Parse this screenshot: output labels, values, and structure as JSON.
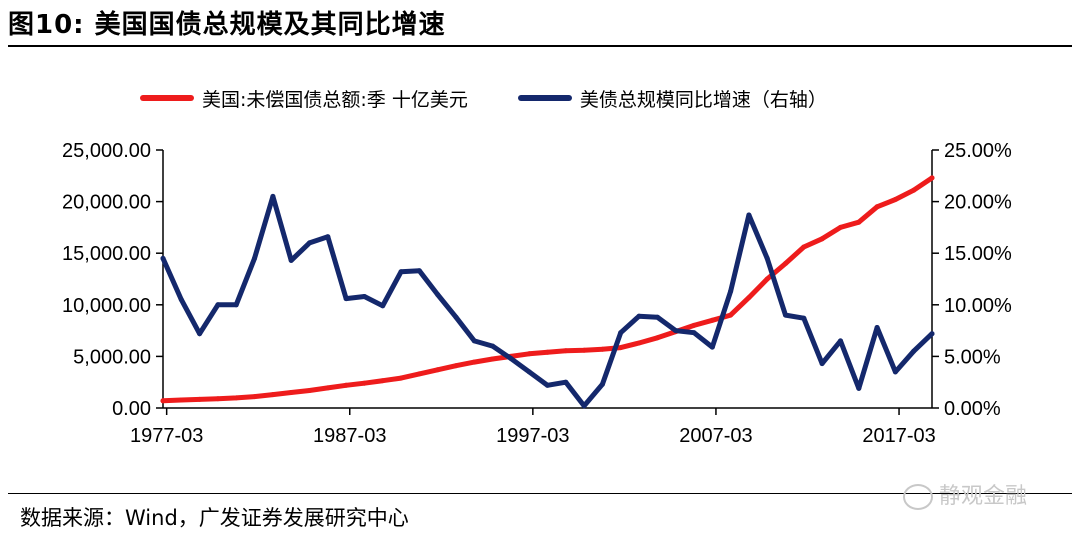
{
  "figure": {
    "title": "图10:  美国国债总规模及其同比增速",
    "source": "数据来源：Wind，广发证券发展研究中心",
    "watermark": "静观金融"
  },
  "colors": {
    "red": "#ee1c1c",
    "blue": "#14286c"
  },
  "chart_data": {
    "type": "line",
    "title": "",
    "xlabel": "",
    "ylabel": "",
    "grid": false,
    "legend_position": "top",
    "x_ticks": [
      "1977-03",
      "1987-03",
      "1997-03",
      "2007-03",
      "2017-03"
    ],
    "x_range": [
      1977.0,
      2019.0
    ],
    "y_left": {
      "range": [
        0,
        25000
      ],
      "ticks": [
        "0.00",
        "5,000.00",
        "10,000.00",
        "15,000.00",
        "20,000.00",
        "25,000.00"
      ]
    },
    "y_right": {
      "range": [
        0,
        25
      ],
      "ticks": [
        "0.00%",
        "5.00%",
        "10.00%",
        "15.00%",
        "20.00%",
        "25.00%"
      ]
    },
    "series": [
      {
        "name": "美国:未偿国债总额:季 十亿美元",
        "axis": "left",
        "color": "#ee1c1c",
        "x": [
          1977,
          1978,
          1979,
          1980,
          1981,
          1982,
          1983,
          1984,
          1985,
          1986,
          1987,
          1988,
          1989,
          1990,
          1991,
          1992,
          1993,
          1994,
          1995,
          1996,
          1997,
          1998,
          1999,
          2000,
          2001,
          2002,
          2003,
          2004,
          2005,
          2006,
          2007,
          2008,
          2009,
          2010,
          2011,
          2012,
          2013,
          2014,
          2015,
          2016,
          2017,
          2018,
          2019
        ],
        "values": [
          700,
          780,
          830,
          900,
          980,
          1100,
          1300,
          1500,
          1700,
          1950,
          2200,
          2400,
          2650,
          2900,
          3300,
          3700,
          4100,
          4450,
          4750,
          5000,
          5250,
          5400,
          5550,
          5600,
          5700,
          5850,
          6300,
          6800,
          7400,
          8000,
          8500,
          9000,
          10700,
          12500,
          14000,
          15600,
          16400,
          17500,
          18000,
          19500,
          20200,
          21100,
          22300
        ]
      },
      {
        "name": "美债总规模同比增速（右轴）",
        "axis": "right",
        "color": "#14286c",
        "x": [
          1977,
          1978,
          1979,
          1980,
          1981,
          1982,
          1983,
          1984,
          1985,
          1986,
          1987,
          1988,
          1989,
          1990,
          1991,
          1992,
          1993,
          1994,
          1995,
          1996,
          1997,
          1998,
          1999,
          2000,
          2001,
          2002,
          2003,
          2004,
          2005,
          2006,
          2007,
          2008,
          2009,
          2010,
          2011,
          2012,
          2013,
          2014,
          2015,
          2016,
          2017,
          2018,
          2019
        ],
        "values": [
          14.5,
          10.5,
          7.2,
          10.0,
          10.0,
          14.5,
          20.5,
          14.3,
          16.0,
          16.6,
          10.6,
          10.8,
          9.9,
          13.2,
          13.3,
          11.0,
          8.8,
          6.5,
          6.0,
          4.8,
          3.5,
          2.2,
          2.5,
          0.2,
          2.3,
          7.3,
          8.9,
          8.8,
          7.5,
          7.3,
          5.9,
          11.3,
          18.7,
          14.5,
          9.0,
          8.7,
          4.3,
          6.5,
          1.9,
          7.8,
          3.5,
          5.5,
          7.2
        ]
      }
    ]
  }
}
